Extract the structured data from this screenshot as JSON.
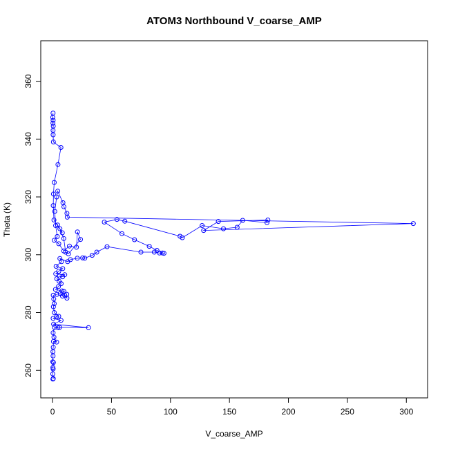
{
  "chart_data": {
    "type": "scatter",
    "title": "ATOM3 Northbound V_coarse_AMP",
    "xlabel": "V_coarse_AMP",
    "ylabel": "Theta (K)",
    "xlim": [
      -10,
      318
    ],
    "ylim": [
      250.5,
      374
    ],
    "x_ticks": [
      0,
      50,
      100,
      150,
      200,
      250,
      300
    ],
    "y_ticks": [
      260,
      280,
      300,
      320,
      340,
      360
    ],
    "grid": false,
    "legend": "none",
    "marker": "open-circle",
    "connected": true,
    "series": [
      {
        "color": "#0000ff",
        "points": [
          [
            0.3,
            257
          ],
          [
            0.6,
            257.2
          ],
          [
            0.2,
            258.8
          ],
          [
            0.5,
            260.5
          ],
          [
            0.3,
            261
          ],
          [
            0.7,
            262.7
          ],
          [
            0.2,
            263
          ],
          [
            0.4,
            265
          ],
          [
            0.3,
            266.5
          ],
          [
            0.6,
            268
          ],
          [
            0.8,
            270
          ],
          [
            3.5,
            269.8
          ],
          [
            1.2,
            271.5
          ],
          [
            0.5,
            273
          ],
          [
            1.6,
            274.9
          ],
          [
            4.5,
            274.8
          ],
          [
            6,
            274.9
          ],
          [
            30.5,
            274.8
          ],
          [
            0.9,
            276
          ],
          [
            7.2,
            277.3
          ],
          [
            0.5,
            278
          ],
          [
            3.5,
            278.6
          ],
          [
            5.2,
            278.7
          ],
          [
            1.5,
            280
          ],
          [
            0.7,
            282
          ],
          [
            1.4,
            283.1
          ],
          [
            1,
            284.7
          ],
          [
            0.6,
            286
          ],
          [
            3.7,
            286.3
          ],
          [
            6.5,
            286.6
          ],
          [
            8.4,
            285.7
          ],
          [
            10.3,
            286
          ],
          [
            12.2,
            285
          ],
          [
            12,
            286.3
          ],
          [
            9.6,
            287.3
          ],
          [
            8,
            287.5
          ],
          [
            2.5,
            288
          ],
          [
            5,
            289
          ],
          [
            7.3,
            290
          ],
          [
            5.6,
            290.8
          ],
          [
            3.6,
            291.7
          ],
          [
            5.8,
            292.6
          ],
          [
            8.5,
            292.4
          ],
          [
            10.3,
            293.1
          ],
          [
            2.7,
            293.4
          ],
          [
            5.3,
            294.3
          ],
          [
            8.6,
            295.2
          ],
          [
            3,
            296
          ],
          [
            7.6,
            297.6
          ],
          [
            6.2,
            298.7
          ],
          [
            12.8,
            297.6
          ],
          [
            15.1,
            298.3
          ],
          [
            21,
            298.8
          ],
          [
            25.5,
            298.9
          ],
          [
            27.3,
            298.8
          ],
          [
            33.6,
            299.8
          ],
          [
            37.5,
            300.9
          ],
          [
            46.2,
            302.8
          ],
          [
            74.9,
            300.9
          ],
          [
            86.3,
            300.9
          ],
          [
            90.7,
            300.6
          ],
          [
            93.2,
            300.6
          ],
          [
            94.5,
            300.5
          ],
          [
            88.5,
            301.5
          ],
          [
            82,
            302.9
          ],
          [
            69.5,
            305.2
          ],
          [
            58.8,
            307.3
          ],
          [
            43.9,
            311.3
          ],
          [
            54.6,
            312.2
          ],
          [
            61.3,
            311.6
          ],
          [
            108.1,
            306.4
          ],
          [
            110,
            305.9
          ],
          [
            126.8,
            310.1
          ],
          [
            144.9,
            309
          ],
          [
            156.5,
            309.5
          ],
          [
            161.2,
            311.9
          ],
          [
            181.8,
            311.1
          ],
          [
            182.6,
            312
          ],
          [
            140.6,
            311.5
          ],
          [
            128.1,
            308.4
          ],
          [
            305.9,
            310.8
          ],
          [
            12.5,
            313
          ],
          [
            12.2,
            314.3
          ],
          [
            9.6,
            316.6
          ],
          [
            8.8,
            318
          ],
          [
            4.4,
            322
          ],
          [
            3.5,
            320
          ],
          [
            1.9,
            315
          ],
          [
            2.6,
            310.1
          ],
          [
            4,
            306.3
          ],
          [
            1.5,
            305
          ],
          [
            5.3,
            303.8
          ],
          [
            9.5,
            301.3
          ],
          [
            14.3,
            303
          ],
          [
            20.3,
            302.6
          ],
          [
            21.1,
            307.9
          ],
          [
            23.7,
            305.3
          ],
          [
            13.5,
            300.3
          ],
          [
            11.1,
            300.9
          ],
          [
            9.5,
            305.6
          ],
          [
            6.2,
            309
          ],
          [
            4.3,
            310.3
          ],
          [
            8.3,
            307.6
          ],
          [
            1.2,
            312
          ],
          [
            0.6,
            317
          ],
          [
            0.8,
            321
          ],
          [
            1.4,
            325
          ],
          [
            4.6,
            331.2
          ],
          [
            7.1,
            337.1
          ],
          [
            0.7,
            339
          ],
          [
            0.5,
            341.5
          ],
          [
            0.4,
            343
          ],
          [
            0.6,
            344.5
          ],
          [
            0.3,
            345.5
          ],
          [
            0.5,
            346.5
          ],
          [
            0.2,
            347.5
          ],
          [
            0.4,
            349
          ]
        ]
      }
    ]
  }
}
